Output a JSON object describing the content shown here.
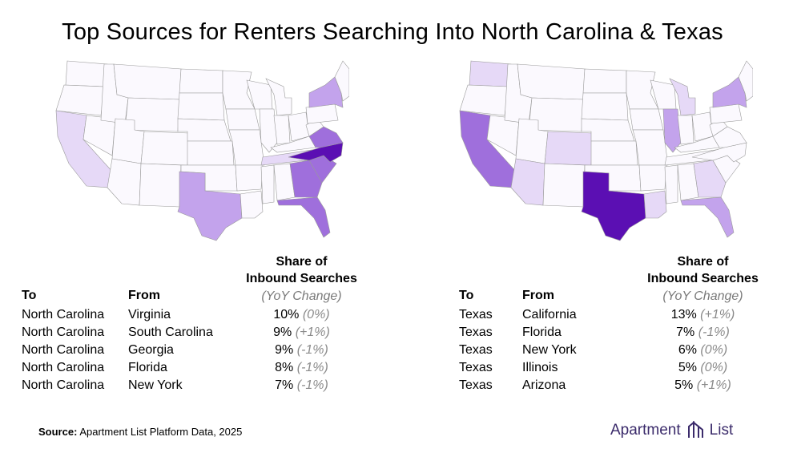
{
  "title": "Top Sources for Renters Searching Into North Carolina & Texas",
  "colors": {
    "shade_darkest": "#5b0fb3",
    "shade_dark": "#9f6fdc",
    "shade_mid": "#c3a3ec",
    "shade_light": "#e6d9f7",
    "shade_lightest": "#f6f1fc",
    "yoy_text": "#8a8a8a",
    "brand": "#3b2b6b"
  },
  "maps": [
    {
      "destination": "North Carolina",
      "highlight": [
        "North Carolina"
      ],
      "shaded_sources": [
        "Virginia",
        "South Carolina",
        "Georgia",
        "Florida",
        "New York",
        "Texas",
        "Tennessee",
        "California"
      ]
    },
    {
      "destination": "Texas",
      "highlight": [
        "Texas"
      ],
      "shaded_sources": [
        "California",
        "Florida",
        "New York",
        "Illinois",
        "Arizona",
        "Colorado",
        "Louisiana",
        "Georgia"
      ]
    }
  ],
  "headers": {
    "share_line1": "Share of",
    "share_line2": "Inbound Searches",
    "to": "To",
    "from": "From",
    "yoy": "(YoY Change)"
  },
  "chart_data": [
    {
      "type": "table",
      "destination": "North Carolina",
      "columns": [
        "To",
        "From",
        "Share of Inbound Searches",
        "(YoY Change)"
      ],
      "rows": [
        {
          "to": "North Carolina",
          "from": "Virginia",
          "share": "10%",
          "yoy": "(0%)"
        },
        {
          "to": "North Carolina",
          "from": "South Carolina",
          "share": "9%",
          "yoy": "(+1%)"
        },
        {
          "to": "North Carolina",
          "from": "Georgia",
          "share": "9%",
          "yoy": "(-1%)"
        },
        {
          "to": "North Carolina",
          "from": "Florida",
          "share": "8%",
          "yoy": "(-1%)"
        },
        {
          "to": "North Carolina",
          "from": "New York",
          "share": "7%",
          "yoy": "(-1%)"
        }
      ]
    },
    {
      "type": "table",
      "destination": "Texas",
      "columns": [
        "To",
        "From",
        "Share of Inbound Searches",
        "(YoY Change)"
      ],
      "rows": [
        {
          "to": "Texas",
          "from": "California",
          "share": "13%",
          "yoy": "(+1%)"
        },
        {
          "to": "Texas",
          "from": "Florida",
          "share": "7%",
          "yoy": "(-1%)"
        },
        {
          "to": "Texas",
          "from": "New York",
          "share": "6%",
          "yoy": "(0%)"
        },
        {
          "to": "Texas",
          "from": "Illinois",
          "share": "5%",
          "yoy": "(0%)"
        },
        {
          "to": "Texas",
          "from": "Arizona",
          "share": "5%",
          "yoy": "(+1%)"
        }
      ]
    }
  ],
  "source": {
    "label": "Source:",
    "text": "Apartment List Platform Data, 2025"
  },
  "logo": {
    "left": "Apartment",
    "right": "List"
  }
}
